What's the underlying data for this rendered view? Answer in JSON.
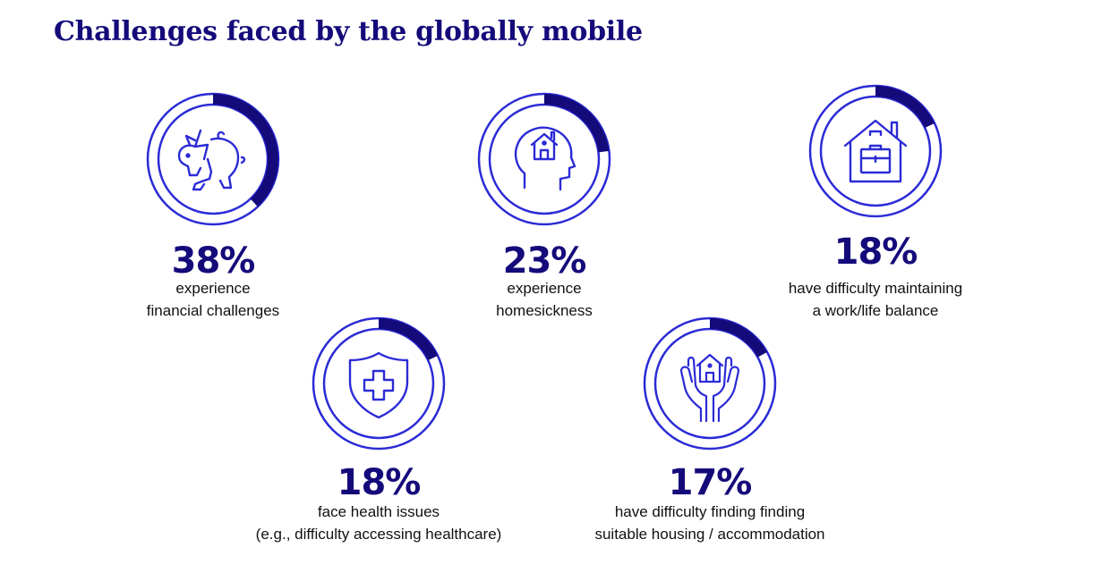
{
  "page": {
    "title": "Challenges faced by the globally mobile"
  },
  "colors": {
    "primary": "#140a7a",
    "icon_line": "#2b2bd6",
    "ring": "#2b2bd6",
    "background": "#ffffff"
  },
  "chart_data": {
    "type": "pie",
    "title": "Challenges faced by the globally mobile",
    "series": [
      {
        "value": 38,
        "percent_label": "38%",
        "icon": "broken-piggy-bank-icon",
        "description": [
          "experience",
          "financial challenges"
        ]
      },
      {
        "value": 23,
        "percent_label": "23%",
        "icon": "head-with-house-icon",
        "description": [
          "experience",
          "homesickness"
        ]
      },
      {
        "value": 18,
        "percent_label": "18%",
        "icon": "house-with-briefcase-icon",
        "description": [
          "have difficulty maintaining",
          "a work/life balance"
        ]
      },
      {
        "value": 18,
        "percent_label": "18%",
        "icon": "shield-plus-icon",
        "description": [
          "face health issues",
          "(e.g., difficulty accessing healthcare)"
        ]
      },
      {
        "value": 17,
        "percent_label": "17%",
        "icon": "hands-holding-house-icon",
        "description": [
          "have difficulty finding finding",
          "suitable housing / accommodation"
        ]
      }
    ]
  }
}
